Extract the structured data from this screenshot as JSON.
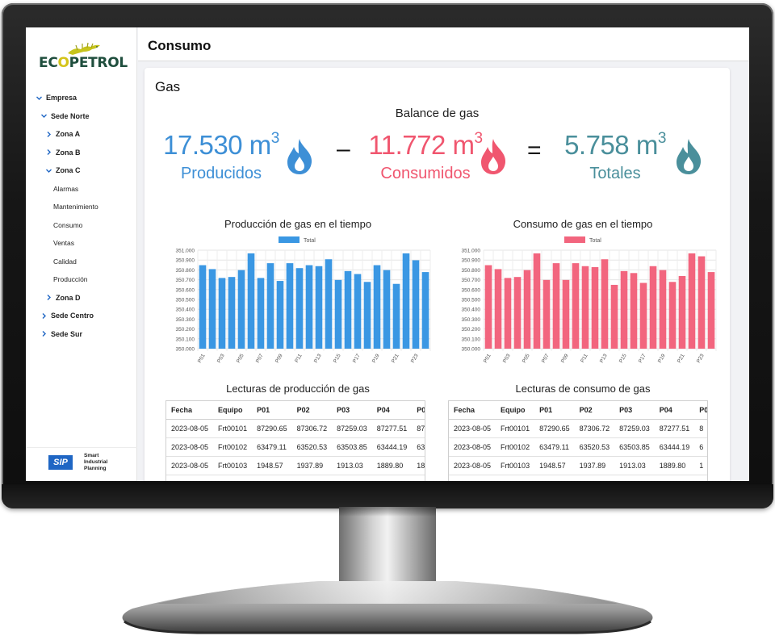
{
  "app": {
    "logo_text_a": "EC",
    "logo_text_b": "O",
    "logo_text_c": "PETROL",
    "page_title": "Consumo",
    "brand": {
      "badge": "SIP",
      "line1": "Smart",
      "line2": "Industrial",
      "line3": "Planning"
    }
  },
  "sidebar": {
    "items": [
      {
        "label": "Empresa",
        "level": 0,
        "type": "group",
        "expanded": true
      },
      {
        "label": "Sede Norte",
        "level": 1,
        "type": "group",
        "expanded": true
      },
      {
        "label": "Zona A",
        "level": 2,
        "type": "group",
        "expanded": false
      },
      {
        "label": "Zona B",
        "level": 2,
        "type": "group",
        "expanded": false
      },
      {
        "label": "Zona C",
        "level": 2,
        "type": "group",
        "expanded": true
      },
      {
        "label": "Alarmas",
        "level": 3,
        "type": "leaf"
      },
      {
        "label": "Mantenimiento",
        "level": 3,
        "type": "leaf"
      },
      {
        "label": "Consumo",
        "level": 3,
        "type": "leaf"
      },
      {
        "label": "Ventas",
        "level": 3,
        "type": "leaf"
      },
      {
        "label": "Calidad",
        "level": 3,
        "type": "leaf"
      },
      {
        "label": "Producción",
        "level": 3,
        "type": "leaf"
      },
      {
        "label": "Zona D",
        "level": 2,
        "type": "group",
        "expanded": false
      },
      {
        "label": "Sede Centro",
        "level": 1,
        "type": "group",
        "expanded": false
      },
      {
        "label": "Sede Sur",
        "level": 1,
        "type": "group",
        "expanded": false
      }
    ]
  },
  "main": {
    "section_title": "Gas",
    "balance": {
      "title": "Balance de gas",
      "minus": "–",
      "equals": "=",
      "produced": {
        "value": "17.530 m",
        "exp": "3",
        "label": "Producidos",
        "color": "#3d8fd6"
      },
      "consumed": {
        "value": "11.772 m",
        "exp": "3",
        "label": "Consumidos",
        "color": "#f0566f"
      },
      "total": {
        "value": "5.758 m",
        "exp": "3",
        "label": "Totales",
        "color": "#4a8f9b"
      }
    },
    "tables": {
      "production": {
        "title": "Lecturas de producción de gas",
        "columns": [
          "Fecha",
          "Equipo",
          "P01",
          "P02",
          "P03",
          "P04",
          "P0"
        ],
        "rows": [
          [
            "2023-08-05",
            "Frt00101",
            "87290.65",
            "87306.72",
            "87259.03",
            "87277.51",
            "87"
          ],
          [
            "2023-08-05",
            "Frt00102",
            "63479.11",
            "63520.53",
            "63503.85",
            "63444.19",
            "63"
          ],
          [
            "2023-08-05",
            "Frt00103",
            "1948.57",
            "1937.89",
            "1913.03",
            "1889.80",
            "18"
          ],
          [
            "",
            "",
            "",
            "",
            "",
            "",
            ""
          ]
        ]
      },
      "consumption": {
        "title": "Lecturas de consumo de gas",
        "columns": [
          "Fecha",
          "Equipo",
          "P01",
          "P02",
          "P03",
          "P04",
          "P0"
        ],
        "rows": [
          [
            "2023-08-05",
            "Frt00101",
            "87290.65",
            "87306.72",
            "87259.03",
            "87277.51",
            "8"
          ],
          [
            "2023-08-05",
            "Frt00102",
            "63479.11",
            "63520.53",
            "63503.85",
            "63444.19",
            "6"
          ],
          [
            "2023-08-05",
            "Frt00103",
            "1948.57",
            "1937.89",
            "1913.03",
            "1889.80",
            "1"
          ],
          [
            "",
            "",
            "",
            "",
            "",
            "",
            ""
          ]
        ]
      }
    }
  },
  "chart_data": [
    {
      "type": "bar",
      "title": "Producción de gas en el tiempo",
      "legend": "top",
      "grid": true,
      "categories": [
        "P01",
        "P02",
        "P03",
        "P04",
        "P05",
        "P06",
        "P07",
        "P08",
        "P09",
        "P10",
        "P11",
        "P12",
        "P13",
        "P14",
        "P15",
        "P16",
        "P17",
        "P18",
        "P19",
        "P20",
        "P21",
        "P22",
        "P23",
        "P24"
      ],
      "tick_labels": [
        "P01",
        "P03",
        "P05",
        "P07",
        "P09",
        "P11",
        "P13",
        "P15",
        "P17",
        "P19",
        "P21",
        "P23"
      ],
      "y_ticks": [
        "351.000",
        "350.900",
        "350.800",
        "350.700",
        "350.600",
        "350.500",
        "350.400",
        "350.300",
        "350.200",
        "350.100",
        "350.000"
      ],
      "ylim": [
        350.0,
        351.0
      ],
      "series": [
        {
          "name": "Total",
          "color": "#3a97e3",
          "values": [
            350.848,
            350.808,
            350.718,
            350.728,
            350.798,
            350.968,
            350.718,
            350.868,
            350.688,
            350.868,
            350.818,
            350.848,
            350.838,
            350.908,
            350.698,
            350.788,
            350.758,
            350.678,
            350.848,
            350.798,
            350.658,
            350.968,
            350.898,
            350.778
          ]
        }
      ]
    },
    {
      "type": "bar",
      "title": "Consumo de gas en el tiempo",
      "legend": "top",
      "grid": true,
      "categories": [
        "P01",
        "P02",
        "P03",
        "P04",
        "P05",
        "P06",
        "P07",
        "P08",
        "P09",
        "P10",
        "P11",
        "P12",
        "P13",
        "P14",
        "P15",
        "P16",
        "P17",
        "P18",
        "P19",
        "P20",
        "P21",
        "P22",
        "P23",
        "P24"
      ],
      "tick_labels": [
        "P01",
        "P03",
        "P05",
        "P07",
        "P09",
        "P11",
        "P13",
        "P15",
        "P17",
        "P19",
        "P21",
        "P23"
      ],
      "y_ticks": [
        "351.000",
        "350.900",
        "350.800",
        "350.700",
        "350.600",
        "350.500",
        "350.400",
        "350.300",
        "350.200",
        "350.100",
        "350.000"
      ],
      "ylim": [
        350.0,
        351.0
      ],
      "series": [
        {
          "name": "Total",
          "color": "#f2657e",
          "values": [
            350.848,
            350.808,
            350.718,
            350.728,
            350.798,
            350.968,
            350.698,
            350.868,
            350.698,
            350.868,
            350.838,
            350.828,
            350.908,
            350.648,
            350.788,
            350.768,
            350.668,
            350.838,
            350.798,
            350.678,
            350.738,
            350.968,
            350.938,
            350.778
          ]
        }
      ]
    }
  ]
}
